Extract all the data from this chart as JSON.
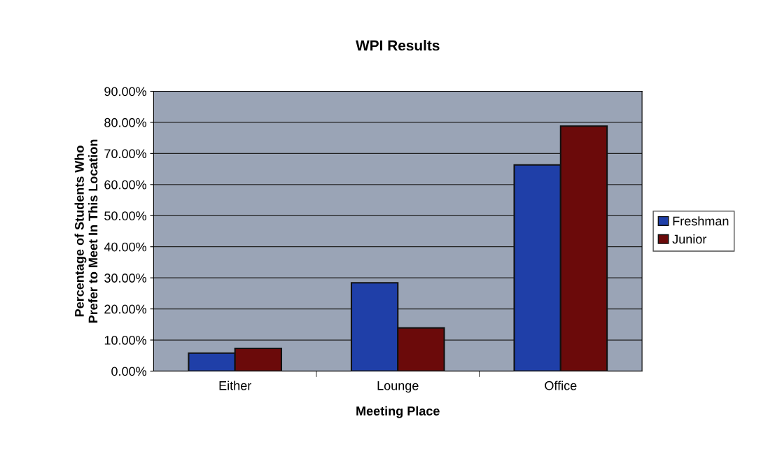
{
  "chart_data": {
    "type": "bar",
    "title": "WPI Results",
    "xlabel": "Meeting Place",
    "ylabel": "Percentage of Students Who\nPrefer to Meet In This Location",
    "categories": [
      "Either",
      "Lounge",
      "Office"
    ],
    "series": [
      {
        "name": "Freshman",
        "color": "#1f3fa8",
        "values": [
          5.8,
          28.4,
          66.3
        ]
      },
      {
        "name": "Junior",
        "color": "#6b0a0a",
        "values": [
          7.3,
          13.9,
          78.8
        ]
      }
    ],
    "ylim": [
      0,
      90
    ],
    "yticks": [
      {
        "value": 0,
        "label": "0.00%"
      },
      {
        "value": 10,
        "label": "10.00%"
      },
      {
        "value": 20,
        "label": "20.00%"
      },
      {
        "value": 30,
        "label": "30.00%"
      },
      {
        "value": 40,
        "label": "40.00%"
      },
      {
        "value": 50,
        "label": "50.00%"
      },
      {
        "value": 60,
        "label": "60.00%"
      },
      {
        "value": 70,
        "label": "70.00%"
      },
      {
        "value": 80,
        "label": "80.00%"
      },
      {
        "value": 90,
        "label": "90.00%"
      }
    ],
    "grid": "y",
    "legend": "right"
  }
}
